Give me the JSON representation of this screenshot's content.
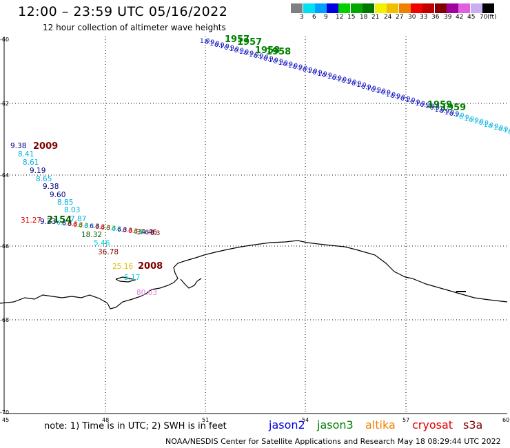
{
  "header": {
    "title": "12:00 – 23:59 UTC 05/16/2022",
    "subtitle": "12 hour collection of altimeter wave heights"
  },
  "colorbar": {
    "labels": [
      "3",
      "6",
      "9",
      "12",
      "15",
      "18",
      "21",
      "24",
      "27",
      "30",
      "33",
      "36",
      "39",
      "42",
      "45",
      "70",
      "(ft)"
    ],
    "colors": [
      "#808080",
      "#00e0f0",
      "#00a0ff",
      "#0000e0",
      "#00d000",
      "#00a800",
      "#007800",
      "#f0f000",
      "#f0c000",
      "#f08000",
      "#f00000",
      "#c00000",
      "#800000",
      "#a000a0",
      "#e060e0",
      "#c8b0f0",
      "#000000"
    ]
  },
  "axes": {
    "lat_labels": [
      "-60",
      "-62",
      "-64",
      "-66",
      "-68",
      "-70"
    ],
    "lon_labels": [
      "45",
      "48",
      "51",
      "54",
      "57",
      "60"
    ]
  },
  "track_upper": {
    "time_labels": [
      {
        "text": "1957",
        "color": "#008000"
      },
      {
        "text": "1957",
        "color": "#008000"
      },
      {
        "text": "1958",
        "color": "#008000"
      },
      {
        "text": "1958",
        "color": "#008000"
      },
      {
        "text": "1959",
        "color": "#008000"
      },
      {
        "text": "1959",
        "color": "#008000"
      }
    ]
  },
  "track_lower": {
    "labels": [
      {
        "text": "9.38",
        "color": "#000080"
      },
      {
        "text": "8.41",
        "color": "#00b0e0"
      },
      {
        "text": "8.61",
        "color": "#00b0e0"
      },
      {
        "text": "9.19",
        "color": "#000080"
      },
      {
        "text": "8.65",
        "color": "#00b0e0"
      },
      {
        "text": "9.38",
        "color": "#000080"
      },
      {
        "text": "9.60",
        "color": "#000080"
      },
      {
        "text": "8.85",
        "color": "#00b0e0"
      },
      {
        "text": "8.03",
        "color": "#00b0e0"
      },
      {
        "text": "7.87",
        "color": "#00b0e0"
      },
      {
        "text": "31.27",
        "color": "#e00000"
      },
      {
        "text": "9.23",
        "color": "#000080"
      },
      {
        "text": "18.32",
        "color": "#006000"
      },
      {
        "text": "34.46",
        "color": "#800000"
      },
      {
        "text": "5.46",
        "color": "#00d0e0"
      },
      {
        "text": "36.78",
        "color": "#800000"
      },
      {
        "text": "25.16",
        "color": "#e0c000"
      },
      {
        "text": "5.17",
        "color": "#00d0e0"
      },
      {
        "text": "80.03",
        "color": "#e080e0"
      }
    ],
    "time_labels": [
      {
        "text": "2009",
        "color": "#800000"
      },
      {
        "text": "2154",
        "color": "#006000"
      },
      {
        "text": "2008",
        "color": "#800000"
      }
    ]
  },
  "footer": {
    "note": "note: 1) Time is in UTC; 2) SWH is in feet",
    "satellites": [
      {
        "name": "jason2",
        "color": "#0000e0"
      },
      {
        "name": "jason3",
        "color": "#008000"
      },
      {
        "name": "altika",
        "color": "#f08000"
      },
      {
        "name": "cryosat",
        "color": "#e00000"
      },
      {
        "name": "s3a",
        "color": "#800000"
      }
    ],
    "credit": "NOAA/NESDIS Center for Satellite Applications and Research    May 18 08:29:44 UTC 2022"
  }
}
